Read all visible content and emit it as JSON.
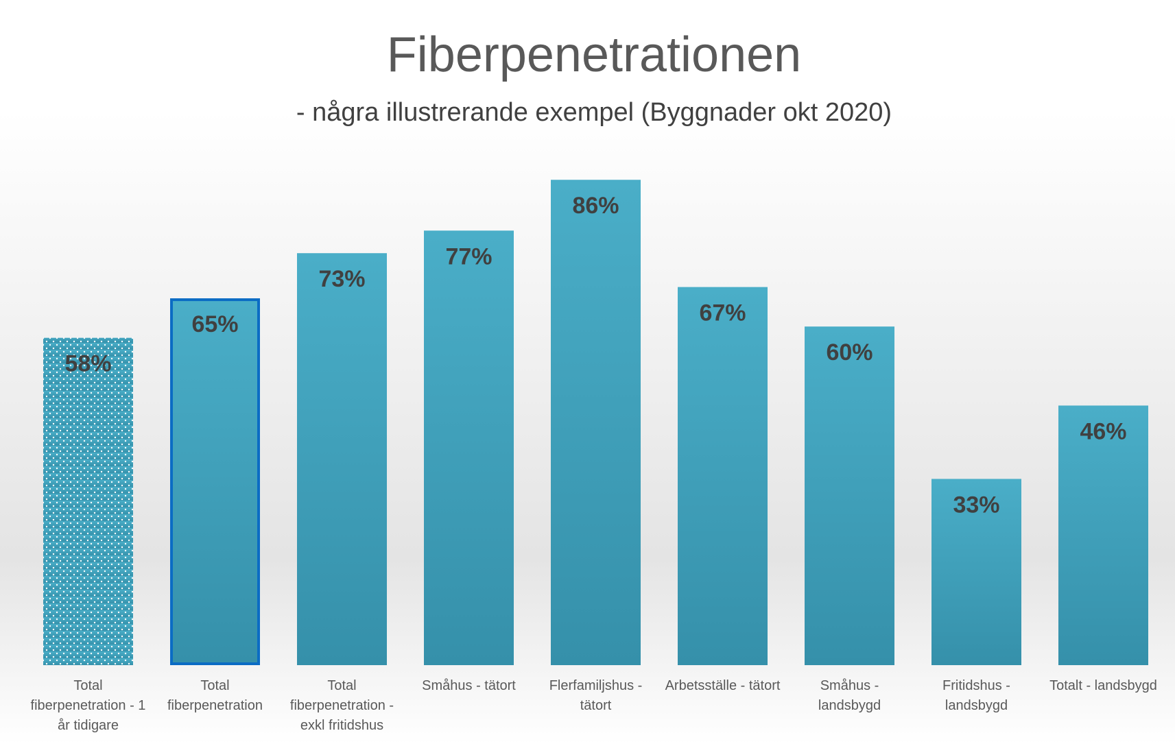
{
  "chart_data": {
    "type": "bar",
    "title": "Fiberpenetrationen",
    "subtitle": "- några illustrerande exempel (Byggnader okt 2020)",
    "categories": [
      "Total fiberpenetration - 1 år tidigare",
      "Total fiberpenetration",
      "Total fiberpenetration - exkl fritidshus",
      "Småhus - tätort",
      "Flerfamiljshus - tätort",
      "Arbetsställe - tätort",
      "Småhus - landsbygd",
      "Fritidshus - landsbygd",
      "Totalt - landsbygd"
    ],
    "values": [
      58,
      65,
      73,
      77,
      86,
      67,
      60,
      33,
      46
    ],
    "value_labels": [
      "58%",
      "65%",
      "73%",
      "77%",
      "86%",
      "67%",
      "60%",
      "33%",
      "46%"
    ],
    "bar_styles": [
      "dotted",
      "outlined",
      "solid",
      "solid",
      "solid",
      "solid",
      "solid",
      "solid",
      "solid"
    ],
    "color": "#43a4be",
    "ylim": [
      0,
      100
    ],
    "grid": false
  }
}
